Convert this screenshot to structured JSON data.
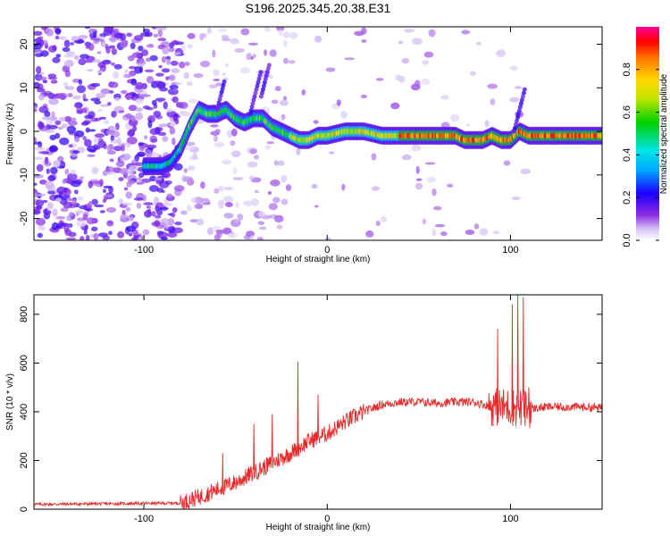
{
  "title": "S196.2025.345.20.38.E31",
  "chart_data": [
    {
      "type": "heatmap",
      "name": "spectrogram",
      "xlabel": "Height of straight line (km)",
      "ylabel": "Frequency (Hz)",
      "xlim": [
        -160,
        150
      ],
      "ylim": [
        -25,
        24
      ],
      "xticks": [
        -100,
        0,
        100
      ],
      "yticks": [
        -20,
        -10,
        0,
        10,
        20
      ],
      "colorbar": {
        "label": "Normalized spectral amplitude",
        "range": [
          0,
          1
        ],
        "ticks": [
          0.0,
          0.2,
          0.4,
          0.6,
          0.8
        ]
      },
      "ridge": {
        "x": [
          -100,
          -90,
          -85,
          -80,
          -75,
          -70,
          -65,
          -60,
          -55,
          -50,
          -45,
          -40,
          -35,
          -30,
          -25,
          -20,
          -15,
          -10,
          -5,
          0,
          10,
          20,
          30,
          40,
          50,
          60,
          70,
          75,
          80,
          85,
          90,
          95,
          100,
          105,
          110,
          120,
          130,
          140,
          150
        ],
        "y": [
          -8,
          -8,
          -7,
          -4,
          1,
          5,
          4,
          4,
          5,
          3,
          2,
          3,
          3,
          1,
          0,
          -1,
          -2,
          -2,
          -1,
          -1,
          0,
          0,
          -1,
          -1,
          -1,
          -1,
          -1,
          -2,
          -2,
          -2,
          -1,
          -2,
          -2,
          0,
          -1,
          -1,
          -1,
          -1,
          -1
        ]
      }
    },
    {
      "type": "line",
      "name": "snr",
      "xlabel": "Height of straight line (km)",
      "ylabel": "SNR (10 * v/v)",
      "xlim": [
        -160,
        150
      ],
      "ylim": [
        0,
        880
      ],
      "xticks": [
        -100,
        0,
        100
      ],
      "yticks": [
        0,
        200,
        400,
        600,
        800
      ],
      "series": [
        {
          "name": "SNR",
          "color": "#e62a2a",
          "trend_x": [
            -160,
            -80,
            -70,
            -60,
            -50,
            -40,
            -30,
            -20,
            -10,
            0,
            10,
            20,
            30,
            40,
            50,
            60,
            70,
            80,
            90,
            100,
            110,
            120,
            130,
            140,
            150
          ],
          "trend_y": [
            20,
            25,
            50,
            80,
            110,
            150,
            190,
            230,
            280,
            310,
            360,
            400,
            430,
            440,
            440,
            435,
            440,
            440,
            420,
            420,
            410,
            420,
            420,
            420,
            415
          ],
          "spikes": [
            {
              "x": -57,
              "y": 230
            },
            {
              "x": -40,
              "y": 350
            },
            {
              "x": -30,
              "y": 390
            },
            {
              "x": -16,
              "y": 605
            },
            {
              "x": -5,
              "y": 470
            },
            {
              "x": 93,
              "y": 740
            },
            {
              "x": 101,
              "y": 840
            },
            {
              "x": 104,
              "y": 880
            },
            {
              "x": 107,
              "y": 870
            },
            {
              "x": 110,
              "y": 500
            }
          ]
        }
      ]
    }
  ]
}
